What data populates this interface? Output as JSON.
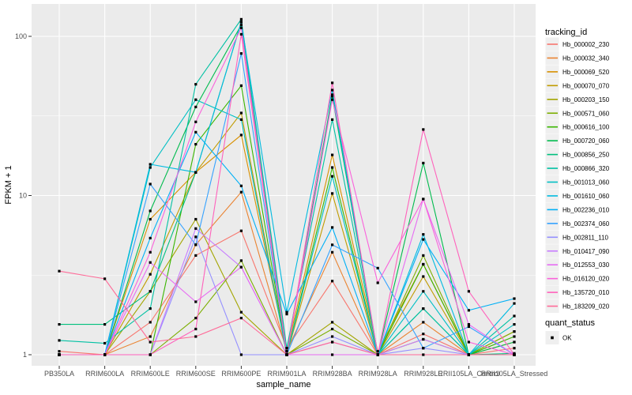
{
  "figure": {
    "background": "#FFFFFF",
    "panel_background": "#EBEBEB",
    "gridline_color": "#FFFFFF",
    "tick_color": "#333333",
    "tick_label_color": "#4D4D4D",
    "axis_title_color": "#000000",
    "legend_key_background": "#EFEFEF"
  },
  "legend": {
    "tracking_title": "tracking_id",
    "quant_title": "quant_status",
    "quant_items": [
      {
        "label": "OK",
        "marker": "black-square"
      }
    ]
  },
  "chart_data": {
    "type": "line",
    "title": "",
    "xlabel": "sample_name",
    "ylabel": "FPKM + 1",
    "y_scale": "log10",
    "y_ticks": [
      1,
      10,
      100
    ],
    "y_minor_ticks": [
      3.162,
      31.623
    ],
    "ylim": [
      0.85,
      160
    ],
    "grid": true,
    "legend_position": "right",
    "point_marker": "black-square",
    "categories": [
      "PB350LA",
      "RRIM600LA",
      "RRIM600LE",
      "RRIM600SE",
      "RRIM600PE",
      "RRIM901LA",
      "RRIM928BA",
      "RRIM928LA",
      "RRIM928LE",
      "RRII105LA_Control",
      "RRII105LA_Stressed"
    ],
    "series": [
      {
        "name": "Hb_000002_230",
        "color": "#F8766D",
        "values": [
          1.05,
          1.0,
          1.6,
          4.2,
          6.0,
          1.1,
          2.9,
          1.0,
          1.35,
          1.0,
          1.1
        ]
      },
      {
        "name": "Hb_000032_340",
        "color": "#EA8331",
        "values": [
          1.0,
          1.0,
          1.3,
          4.9,
          10.5,
          1.05,
          4.4,
          1.0,
          1.6,
          1.0,
          1.2
        ]
      },
      {
        "name": "Hb_000069_520",
        "color": "#D89000",
        "values": [
          1.0,
          1.0,
          7.1,
          14.0,
          24.0,
          1.05,
          18.0,
          1.05,
          3.7,
          1.0,
          1.4
        ]
      },
      {
        "name": "Hb_000070_070",
        "color": "#C09B00",
        "values": [
          1.0,
          1.0,
          3.2,
          14.0,
          33.0,
          1.0,
          10.3,
          1.0,
          3.1,
          1.0,
          1.0
        ]
      },
      {
        "name": "Hb_000203_150",
        "color": "#A3A500",
        "values": [
          1.0,
          1.0,
          2.5,
          7.1,
          1.85,
          1.0,
          1.6,
          1.0,
          1.25,
          1.0,
          1.0
        ]
      },
      {
        "name": "Hb_000571_060",
        "color": "#7CAE00",
        "values": [
          1.0,
          1.0,
          1.0,
          1.7,
          3.9,
          1.0,
          1.45,
          1.0,
          4.2,
          1.0,
          1.4
        ]
      },
      {
        "name": "Hb_000616_100",
        "color": "#39B600",
        "values": [
          1.0,
          1.0,
          1.0,
          21.0,
          49.0,
          1.0,
          15.0,
          1.0,
          3.7,
          1.0,
          1.3
        ]
      },
      {
        "name": "Hb_000720_060",
        "color": "#00BB4E",
        "values": [
          1.0,
          1.0,
          8.0,
          36.0,
          118.0,
          1.0,
          43.0,
          1.0,
          16.0,
          1.0,
          1.2
        ]
      },
      {
        "name": "Hb_000856_250",
        "color": "#00BF7D",
        "values": [
          1.55,
          1.55,
          2.5,
          14.0,
          123.0,
          1.05,
          42.0,
          1.0,
          1.95,
          1.0,
          1.02
        ]
      },
      {
        "name": "Hb_000866_320",
        "color": "#00C1A3",
        "values": [
          1.23,
          1.18,
          1.95,
          50.0,
          128.0,
          1.1,
          30.0,
          1.0,
          1.95,
          1.0,
          1.75
        ]
      },
      {
        "name": "Hb_001013_060",
        "color": "#00BFC4",
        "values": [
          1.0,
          1.0,
          15.0,
          40.0,
          30.0,
          1.0,
          13.2,
          1.0,
          2.5,
          1.0,
          1.55
        ]
      },
      {
        "name": "Hb_001610_060",
        "color": "#00BAE0",
        "values": [
          1.0,
          1.0,
          15.7,
          14.0,
          123.0,
          1.85,
          46.0,
          1.0,
          5.7,
          1.0,
          2.1
        ]
      },
      {
        "name": "Hb_002236_010",
        "color": "#00B0F6",
        "values": [
          1.0,
          1.0,
          5.4,
          25.0,
          11.5,
          1.8,
          6.3,
          1.0,
          5.3,
          1.9,
          2.25
        ]
      },
      {
        "name": "Hb_002374_060",
        "color": "#35A2FF",
        "values": [
          1.0,
          1.0,
          11.8,
          4.9,
          78.0,
          1.0,
          4.9,
          3.5,
          1.1,
          1.5,
          1.0
        ]
      },
      {
        "name": "Hb_002811_110",
        "color": "#9590FF",
        "values": [
          1.0,
          1.0,
          1.0,
          5.5,
          1.0,
          1.0,
          1.3,
          1.0,
          1.1,
          1.0,
          1.0
        ]
      },
      {
        "name": "Hb_010417_090",
        "color": "#C77CFF",
        "values": [
          1.0,
          1.0,
          1.0,
          6.2,
          3.55,
          1.0,
          1.2,
          1.0,
          1.25,
          1.0,
          1.0
        ]
      },
      {
        "name": "Hb_012553_030",
        "color": "#E76BF3",
        "values": [
          1.0,
          1.0,
          3.8,
          2.15,
          3.55,
          1.0,
          1.0,
          1.0,
          9.5,
          1.55,
          1.0
        ]
      },
      {
        "name": "Hb_016120_020",
        "color": "#FA62DB",
        "values": [
          1.0,
          1.0,
          4.4,
          29.0,
          113.0,
          1.0,
          40.0,
          2.83,
          9.5,
          1.2,
          1.0
        ]
      },
      {
        "name": "Hb_135720_010",
        "color": "#FF62BC",
        "values": [
          1.0,
          1.0,
          1.0,
          1.45,
          103.0,
          1.0,
          51.0,
          1.0,
          26.0,
          2.5,
          1.0
        ]
      },
      {
        "name": "Hb_183209_020",
        "color": "#FF6A98",
        "values": [
          3.35,
          3.0,
          1.2,
          1.3,
          1.7,
          1.0,
          1.2,
          1.0,
          1.0,
          1.0,
          1.0
        ]
      }
    ]
  }
}
